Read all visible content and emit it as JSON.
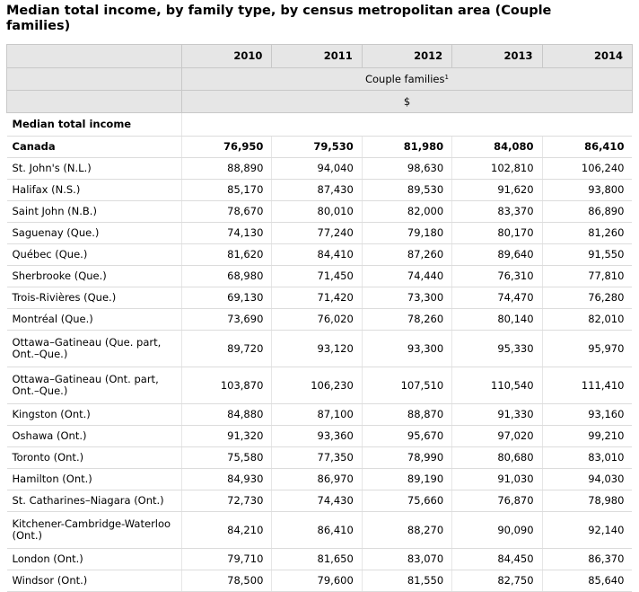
{
  "title": "Median total income, by family type, by census metropolitan area (Couple families)",
  "columns": [
    "2010",
    "2011",
    "2012",
    "2013",
    "2014"
  ],
  "family_type": "Couple families",
  "family_type_note": "1",
  "unit": "$",
  "section_label": "Median total income",
  "rows": [
    {
      "label": "Canada",
      "values": [
        "76,950",
        "79,530",
        "81,980",
        "84,080",
        "86,410"
      ],
      "bold": true
    },
    {
      "label": "St. John's (N.L.)",
      "values": [
        "88,890",
        "94,040",
        "98,630",
        "102,810",
        "106,240"
      ]
    },
    {
      "label": "Halifax (N.S.)",
      "values": [
        "85,170",
        "87,430",
        "89,530",
        "91,620",
        "93,800"
      ]
    },
    {
      "label": "Saint John (N.B.)",
      "values": [
        "78,670",
        "80,010",
        "82,000",
        "83,370",
        "86,890"
      ]
    },
    {
      "label": "Saguenay (Que.)",
      "values": [
        "74,130",
        "77,240",
        "79,180",
        "80,170",
        "81,260"
      ]
    },
    {
      "label": "Québec (Que.)",
      "values": [
        "81,620",
        "84,410",
        "87,260",
        "89,640",
        "91,550"
      ]
    },
    {
      "label": "Sherbrooke (Que.)",
      "values": [
        "68,980",
        "71,450",
        "74,440",
        "76,310",
        "77,810"
      ]
    },
    {
      "label": "Trois-Rivières (Que.)",
      "values": [
        "69,130",
        "71,420",
        "73,300",
        "74,470",
        "76,280"
      ]
    },
    {
      "label": "Montréal (Que.)",
      "values": [
        "73,690",
        "76,020",
        "78,260",
        "80,140",
        "82,010"
      ]
    },
    {
      "label": "Ottawa–Gatineau (Que. part, Ont.–Que.)",
      "values": [
        "89,720",
        "93,120",
        "93,300",
        "95,330",
        "95,970"
      ],
      "tall": true
    },
    {
      "label": "Ottawa–Gatineau (Ont. part, Ont.–Que.)",
      "values": [
        "103,870",
        "106,230",
        "107,510",
        "110,540",
        "111,410"
      ],
      "tall": true
    },
    {
      "label": "Kingston (Ont.)",
      "values": [
        "84,880",
        "87,100",
        "88,870",
        "91,330",
        "93,160"
      ]
    },
    {
      "label": "Oshawa (Ont.)",
      "values": [
        "91,320",
        "93,360",
        "95,670",
        "97,020",
        "99,210"
      ]
    },
    {
      "label": "Toronto (Ont.)",
      "values": [
        "75,580",
        "77,350",
        "78,990",
        "80,680",
        "83,010"
      ]
    },
    {
      "label": "Hamilton (Ont.)",
      "values": [
        "84,930",
        "86,970",
        "89,190",
        "91,030",
        "94,030"
      ]
    },
    {
      "label": "St. Catharines–Niagara (Ont.)",
      "values": [
        "72,730",
        "74,430",
        "75,660",
        "76,870",
        "78,980"
      ]
    },
    {
      "label": "Kitchener-Cambridge-Waterloo (Ont.)",
      "values": [
        "84,210",
        "86,410",
        "88,270",
        "90,090",
        "92,140"
      ],
      "tall": true
    },
    {
      "label": "London (Ont.)",
      "values": [
        "79,710",
        "81,650",
        "83,070",
        "84,450",
        "86,370"
      ]
    },
    {
      "label": "Windsor (Ont.)",
      "values": [
        "78,500",
        "79,600",
        "81,550",
        "82,750",
        "85,640"
      ]
    }
  ]
}
